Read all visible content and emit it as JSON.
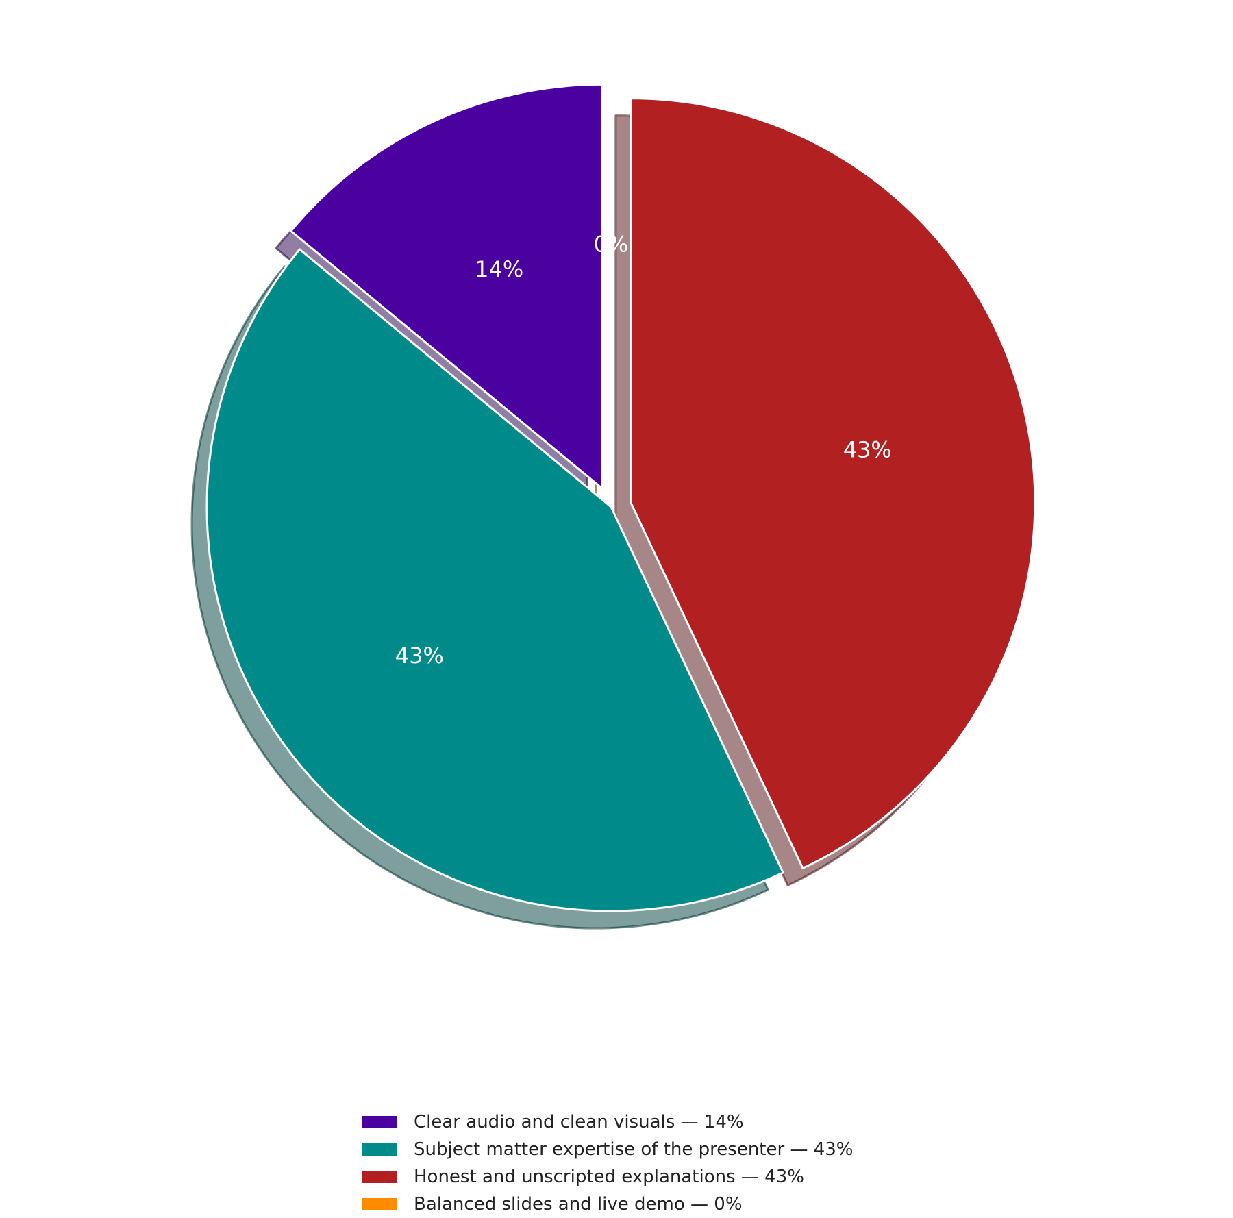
{
  "chart_data": {
    "type": "pie",
    "title": "",
    "start_angle_deg": 90,
    "direction": "counterclockwise",
    "shadow": true,
    "legend_position": "bottom-center",
    "slices": [
      {
        "label": "Clear audio and clean visuals",
        "value": 14,
        "pct_text": "14%",
        "legend_text": "Clear audio and clean visuals — 14%",
        "color": "#4B00A0",
        "exploded": true
      },
      {
        "label": "Subject matter expertise of the presenter",
        "value": 43,
        "pct_text": "43%",
        "legend_text": "Subject matter expertise of the presenter — 43%",
        "color": "#008B8A",
        "exploded": false
      },
      {
        "label": "Honest and unscripted explanations",
        "value": 43,
        "pct_text": "43%",
        "legend_text": "Honest and unscripted explanations — 43%",
        "color": "#B22022",
        "exploded": true
      },
      {
        "label": "Balanced slides and live demo",
        "value": 0,
        "pct_text": "0%",
        "legend_text": "Balanced slides and live demo — 0%",
        "color": "#FF8C00",
        "exploded": true
      }
    ]
  }
}
